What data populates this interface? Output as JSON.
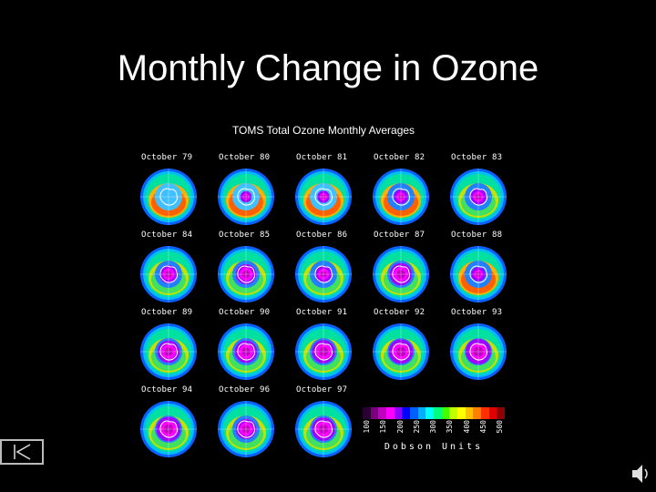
{
  "slide": {
    "title": "Monthly Change in Ozone"
  },
  "figure": {
    "title": "TOMS  Total Ozone Monthly Averages",
    "maps": [
      {
        "label": "October 79",
        "hole": 0.0
      },
      {
        "label": "October 80",
        "hole": 0.2
      },
      {
        "label": "October 81",
        "hole": 0.25
      },
      {
        "label": "October 82",
        "hole": 0.35
      },
      {
        "label": "October 83",
        "hole": 0.45
      },
      {
        "label": "October 84",
        "hole": 0.55
      },
      {
        "label": "October 85",
        "hole": 0.65
      },
      {
        "label": "October 86",
        "hole": 0.5
      },
      {
        "label": "October 87",
        "hole": 0.75
      },
      {
        "label": "October 88",
        "hole": 0.35
      },
      {
        "label": "October 89",
        "hole": 0.75
      },
      {
        "label": "October 90",
        "hole": 0.75
      },
      {
        "label": "October 91",
        "hole": 0.8
      },
      {
        "label": "October 92",
        "hole": 0.85
      },
      {
        "label": "October 93",
        "hole": 0.9
      },
      {
        "label": "October 94",
        "hole": 0.85
      },
      {
        "label": "October 96",
        "hole": 0.65
      },
      {
        "label": "October 97",
        "hole": 0.8
      }
    ],
    "scale": {
      "unit": "Dobson Units",
      "ticks": [
        "100",
        "150",
        "200",
        "250",
        "300",
        "350",
        "400",
        "450",
        "500"
      ],
      "colors": [
        "#2a0030",
        "#7a0080",
        "#c000c0",
        "#ff00ff",
        "#9000ff",
        "#0000ff",
        "#0060ff",
        "#00b0ff",
        "#00ffff",
        "#00ff80",
        "#40ff00",
        "#c0ff00",
        "#ffff00",
        "#ffc000",
        "#ff8000",
        "#ff3000",
        "#e00000",
        "#900000"
      ]
    }
  },
  "controls": {
    "nav_icon": "skip-to-start-icon",
    "audio_icon": "speaker-icon"
  }
}
